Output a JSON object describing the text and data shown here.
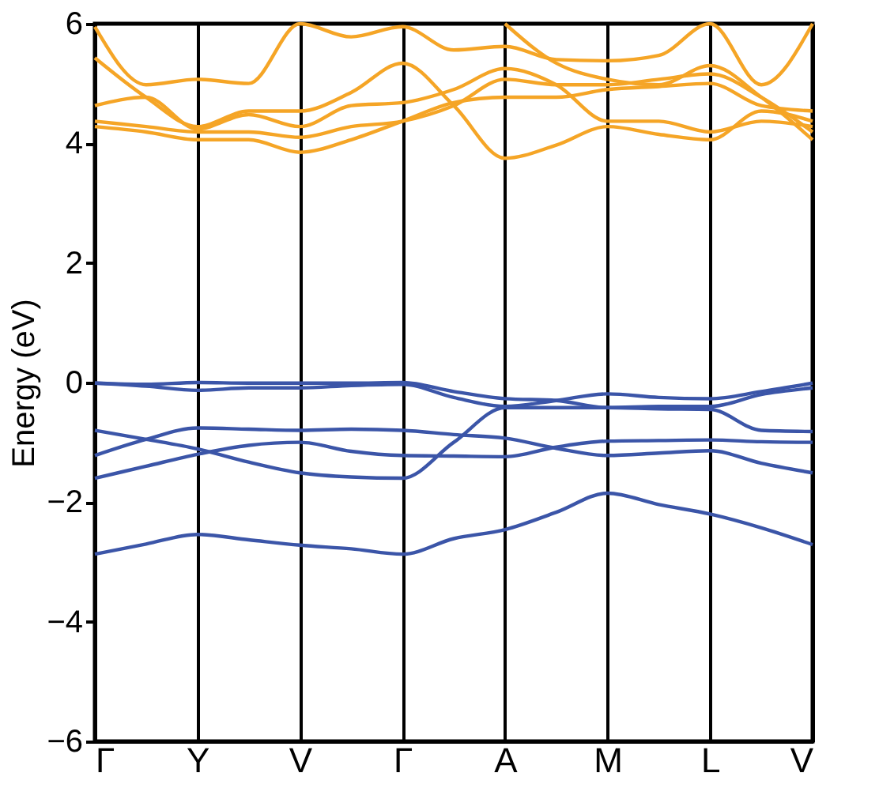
{
  "chart_data": {
    "type": "line",
    "ylabel": "Energy (eV)",
    "categories": [
      "Γ",
      null,
      "Y",
      null,
      "V",
      null,
      "Γ",
      null,
      "A",
      null,
      "M",
      null,
      "L",
      null,
      "V"
    ],
    "ylim": [
      -6,
      6
    ],
    "yticks": [
      {
        "value": -6,
        "label": "−6"
      },
      {
        "value": -4,
        "label": "−4"
      },
      {
        "value": -2,
        "label": "−2"
      },
      0,
      2,
      4,
      6
    ],
    "grid": "x",
    "line_style": "solid",
    "marker": "none",
    "legend": false,
    "series": [
      {
        "color": "#3b55a8",
        "values": [
          -2.87,
          -2.7,
          -2.54,
          -2.63,
          -2.72,
          -2.78,
          -2.87,
          -2.61,
          -2.46,
          -2.17,
          -1.85,
          -2.04,
          -2.2,
          -2.43,
          -2.71
        ]
      },
      {
        "color": "#3b55a8",
        "values": [
          -0.8,
          -0.95,
          -1.11,
          -1.33,
          -1.51,
          -1.58,
          -1.6,
          -1.0,
          -0.42,
          -0.42,
          -0.42,
          -0.44,
          -0.45,
          -0.8,
          -0.82
        ]
      },
      {
        "color": "#3b55a8",
        "values": [
          -1.22,
          -0.95,
          -0.76,
          -0.78,
          -0.8,
          -0.78,
          -0.8,
          -0.87,
          -0.93,
          -1.1,
          -1.22,
          -1.18,
          -1.14,
          -1.35,
          -1.51
        ]
      },
      {
        "color": "#3b55a8",
        "values": [
          -1.6,
          -1.4,
          -1.2,
          -1.05,
          -1.0,
          -1.15,
          -1.22,
          -1.23,
          -1.24,
          -1.08,
          -0.98,
          -0.97,
          -0.96,
          -0.99,
          -1.0
        ]
      },
      {
        "color": "#3b55a8",
        "values": [
          -0.01,
          -0.03,
          0.0,
          -0.01,
          -0.01,
          -0.01,
          0.0,
          -0.15,
          -0.27,
          -0.3,
          -0.42,
          -0.4,
          -0.4,
          -0.2,
          -0.09
        ]
      },
      {
        "color": "#3b55a8",
        "values": [
          -0.01,
          -0.06,
          -0.13,
          -0.09,
          -0.09,
          -0.05,
          -0.03,
          -0.25,
          -0.4,
          -0.3,
          -0.19,
          -0.25,
          -0.27,
          -0.15,
          -0.01
        ]
      },
      {
        "color": "#f5a526",
        "values": [
          5.95,
          4.98,
          5.07,
          5.0,
          6.0,
          5.78,
          5.95,
          5.56,
          5.62,
          5.4,
          5.38,
          5.47,
          6.0,
          4.98,
          6.0
        ]
      },
      {
        "color": "#f5a526",
        "values": [
          5.43,
          4.77,
          4.28,
          4.54,
          4.54,
          4.85,
          5.34,
          4.63,
          3.75,
          3.97,
          4.28,
          4.15,
          4.06,
          4.54,
          4.37
        ]
      },
      {
        "color": "#f5a526",
        "values": [
          4.63,
          4.77,
          4.24,
          4.48,
          4.28,
          4.63,
          4.68,
          4.9,
          5.25,
          4.98,
          4.37,
          4.37,
          4.19,
          4.37,
          4.28
        ]
      },
      {
        "color": "#f5a526",
        "values": [
          4.37,
          4.28,
          4.19,
          4.19,
          4.1,
          4.28,
          4.37,
          4.63,
          5.07,
          4.98,
          4.98,
          5.07,
          5.16,
          4.77,
          4.19
        ]
      },
      {
        "color": "#f5a526",
        "values": [
          4.28,
          4.19,
          4.06,
          4.06,
          3.85,
          4.06,
          4.37,
          4.68,
          4.77,
          4.77,
          4.9,
          4.95,
          5.0,
          4.63,
          4.54
        ]
      },
      {
        "color": "#f5a526",
        "values": [
          null,
          null,
          null,
          null,
          null,
          null,
          null,
          null,
          6.0,
          5.34,
          5.07,
          4.98,
          5.3,
          4.77,
          4.06
        ]
      }
    ]
  }
}
